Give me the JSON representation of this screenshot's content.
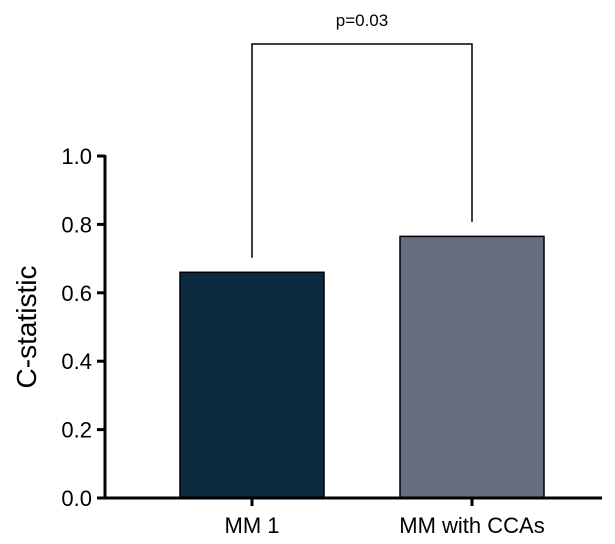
{
  "chart_data": {
    "type": "bar",
    "categories": [
      "MM 1",
      "MM with CCAs"
    ],
    "values": [
      0.66,
      0.765
    ],
    "ylabel": "C-statistic",
    "xlabel": "",
    "ylim": [
      0.0,
      1.0
    ],
    "yticks": [
      "0.0",
      "0.2",
      "0.4",
      "0.6",
      "0.8",
      "1.0"
    ],
    "bar_colors": [
      "#0b2a3f",
      "#646e7e"
    ],
    "grid": false,
    "annotation": {
      "text": "p=0.03",
      "between": [
        "MM 1",
        "MM with CCAs"
      ]
    }
  }
}
